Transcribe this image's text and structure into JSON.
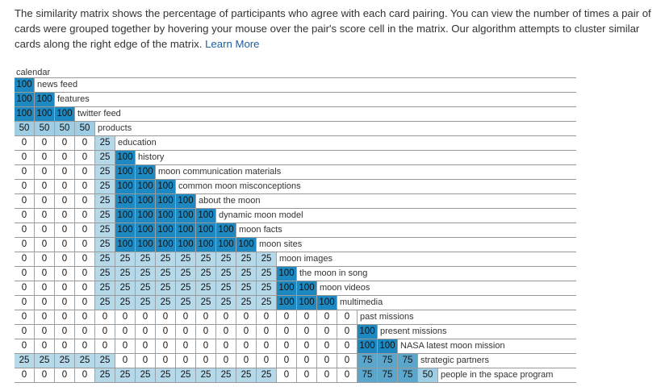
{
  "intro": {
    "text": "The similarity matrix shows the percentage of participants who agree with each card pairing. You can view the number of times a pair of cards were grouped together by hovering your mouse over the pair's score cell in the matrix. Our algorithm attempts to cluster similar cards along the right edge of the matrix.",
    "link_label": "Learn More"
  },
  "colors": {
    "0": "#ffffff",
    "25": "#b6d9ea",
    "50": "#9fcde3",
    "75": "#5da6cb",
    "100": "#1e88c0"
  },
  "matrix": {
    "first_label": "calendar",
    "rows": [
      {
        "label": "news feed",
        "values": [
          100
        ]
      },
      {
        "label": "features",
        "values": [
          100,
          100
        ]
      },
      {
        "label": "twitter feed",
        "values": [
          100,
          100,
          100
        ]
      },
      {
        "label": "products",
        "values": [
          50,
          50,
          50,
          50
        ]
      },
      {
        "label": "education",
        "values": [
          0,
          0,
          0,
          0,
          25
        ]
      },
      {
        "label": "history",
        "values": [
          0,
          0,
          0,
          0,
          25,
          100
        ]
      },
      {
        "label": "moon communication materials",
        "values": [
          0,
          0,
          0,
          0,
          25,
          100,
          100
        ]
      },
      {
        "label": "common moon misconceptions",
        "values": [
          0,
          0,
          0,
          0,
          25,
          100,
          100,
          100
        ]
      },
      {
        "label": "about the moon",
        "values": [
          0,
          0,
          0,
          0,
          25,
          100,
          100,
          100,
          100
        ]
      },
      {
        "label": "dynamic moon model",
        "values": [
          0,
          0,
          0,
          0,
          25,
          100,
          100,
          100,
          100,
          100
        ]
      },
      {
        "label": "moon facts",
        "values": [
          0,
          0,
          0,
          0,
          25,
          100,
          100,
          100,
          100,
          100,
          100
        ]
      },
      {
        "label": "moon sites",
        "values": [
          0,
          0,
          0,
          0,
          25,
          100,
          100,
          100,
          100,
          100,
          100,
          100
        ]
      },
      {
        "label": "moon images",
        "values": [
          0,
          0,
          0,
          0,
          25,
          25,
          25,
          25,
          25,
          25,
          25,
          25,
          25
        ]
      },
      {
        "label": "the moon in song",
        "values": [
          0,
          0,
          0,
          0,
          25,
          25,
          25,
          25,
          25,
          25,
          25,
          25,
          25,
          100
        ]
      },
      {
        "label": "moon videos",
        "values": [
          0,
          0,
          0,
          0,
          25,
          25,
          25,
          25,
          25,
          25,
          25,
          25,
          25,
          100,
          100
        ]
      },
      {
        "label": "multimedia",
        "values": [
          0,
          0,
          0,
          0,
          25,
          25,
          25,
          25,
          25,
          25,
          25,
          25,
          25,
          100,
          100,
          100
        ]
      },
      {
        "label": "past missions",
        "values": [
          0,
          0,
          0,
          0,
          0,
          0,
          0,
          0,
          0,
          0,
          0,
          0,
          0,
          0,
          0,
          0,
          0
        ]
      },
      {
        "label": "present missions",
        "values": [
          0,
          0,
          0,
          0,
          0,
          0,
          0,
          0,
          0,
          0,
          0,
          0,
          0,
          0,
          0,
          0,
          0,
          100
        ]
      },
      {
        "label": "NASA latest moon mission",
        "values": [
          0,
          0,
          0,
          0,
          0,
          0,
          0,
          0,
          0,
          0,
          0,
          0,
          0,
          0,
          0,
          0,
          0,
          100,
          100
        ]
      },
      {
        "label": "strategic partners",
        "values": [
          25,
          25,
          25,
          25,
          25,
          0,
          0,
          0,
          0,
          0,
          0,
          0,
          0,
          0,
          0,
          0,
          0,
          75,
          75,
          75
        ]
      },
      {
        "label": "people in the space program",
        "values": [
          0,
          0,
          0,
          0,
          25,
          25,
          25,
          25,
          25,
          25,
          25,
          25,
          25,
          0,
          0,
          0,
          0,
          75,
          75,
          75,
          50
        ]
      }
    ]
  }
}
